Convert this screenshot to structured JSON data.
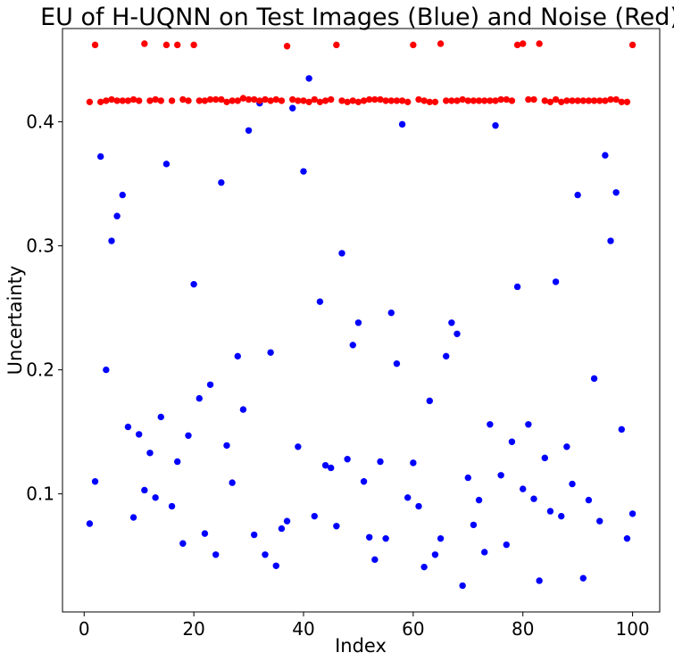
{
  "chart_data": {
    "type": "scatter",
    "title": "EU of H-UQNN on Test Images (Blue) and Noise (Red)",
    "xlabel": "Index",
    "ylabel": "Uncertainty",
    "xlim": [
      -3.95,
      104.95
    ],
    "ylim": [
      0.0048,
      0.4752
    ],
    "xticks": [
      0,
      20,
      40,
      60,
      80,
      100
    ],
    "xtick_labels": [
      "0",
      "20",
      "40",
      "60",
      "80",
      "100"
    ],
    "yticks": [
      0.1,
      0.2,
      0.3,
      0.4
    ],
    "ytick_labels": [
      "0.1",
      "0.2",
      "0.3",
      "0.4"
    ],
    "grid": false,
    "legend": "none",
    "series": [
      {
        "color": "#0000ff",
        "x": [
          1,
          2,
          3,
          4,
          5,
          6,
          7,
          8,
          9,
          10,
          11,
          12,
          13,
          14,
          15,
          16,
          17,
          18,
          19,
          20,
          21,
          22,
          23,
          24,
          25,
          26,
          27,
          28,
          29,
          30,
          31,
          32,
          33,
          34,
          35,
          36,
          37,
          38,
          39,
          40,
          41,
          42,
          43,
          44,
          45,
          46,
          47,
          48,
          49,
          50,
          51,
          52,
          53,
          54,
          55,
          56,
          57,
          58,
          59,
          60,
          61,
          62,
          63,
          64,
          65,
          66,
          67,
          68,
          69,
          70,
          71,
          72,
          73,
          74,
          75,
          76,
          77,
          78,
          79,
          80,
          81,
          82,
          83,
          84,
          85,
          86,
          87,
          88,
          89,
          90,
          91,
          92,
          93,
          94,
          95,
          96,
          97,
          98,
          99,
          100
        ],
        "y": [
          0.076,
          0.11,
          0.372,
          0.2,
          0.304,
          0.324,
          0.341,
          0.154,
          0.081,
          0.148,
          0.103,
          0.133,
          0.097,
          0.162,
          0.366,
          0.09,
          0.126,
          0.06,
          0.147,
          0.269,
          0.177,
          0.068,
          0.188,
          0.051,
          0.351,
          0.139,
          0.109,
          0.211,
          0.168,
          0.393,
          0.067,
          0.415,
          0.051,
          0.214,
          0.042,
          0.072,
          0.078,
          0.411,
          0.138,
          0.36,
          0.435,
          0.082,
          0.255,
          0.123,
          0.121,
          0.074,
          0.294,
          0.128,
          0.22,
          0.238,
          0.11,
          0.065,
          0.047,
          0.126,
          0.064,
          0.246,
          0.205,
          0.398,
          0.097,
          0.125,
          0.09,
          0.041,
          0.175,
          0.051,
          0.064,
          0.211,
          0.238,
          0.229,
          0.026,
          0.113,
          0.075,
          0.095,
          0.053,
          0.156,
          0.397,
          0.115,
          0.059,
          0.142,
          0.267,
          0.104,
          0.156,
          0.096,
          0.03,
          0.129,
          0.086,
          0.271,
          0.082,
          0.138,
          0.108,
          0.341,
          0.032,
          0.095,
          0.193,
          0.078,
          0.373,
          0.304,
          0.343,
          0.152,
          0.064,
          0.084
        ]
      },
      {
        "color": "#ff0000",
        "x": [
          1,
          2,
          3,
          4,
          5,
          6,
          7,
          8,
          9,
          10,
          11,
          12,
          13,
          14,
          15,
          16,
          17,
          18,
          19,
          20,
          21,
          22,
          23,
          24,
          25,
          26,
          27,
          28,
          29,
          30,
          31,
          32,
          33,
          34,
          35,
          36,
          37,
          38,
          39,
          40,
          41,
          42,
          43,
          44,
          45,
          46,
          47,
          48,
          49,
          50,
          51,
          52,
          53,
          54,
          55,
          56,
          57,
          58,
          59,
          60,
          61,
          62,
          63,
          64,
          65,
          66,
          67,
          68,
          69,
          70,
          71,
          72,
          73,
          74,
          75,
          76,
          77,
          78,
          79,
          80,
          81,
          82,
          83,
          84,
          85,
          86,
          87,
          88,
          89,
          90,
          91,
          92,
          93,
          94,
          95,
          96,
          97,
          98,
          99,
          100
        ],
        "y": [
          0.416,
          0.462,
          0.416,
          0.417,
          0.418,
          0.417,
          0.417,
          0.417,
          0.418,
          0.417,
          0.463,
          0.417,
          0.418,
          0.417,
          0.462,
          0.417,
          0.462,
          0.418,
          0.417,
          0.462,
          0.417,
          0.417,
          0.418,
          0.418,
          0.418,
          0.416,
          0.417,
          0.417,
          0.419,
          0.418,
          0.418,
          0.417,
          0.418,
          0.417,
          0.418,
          0.417,
          0.461,
          0.418,
          0.417,
          0.417,
          0.416,
          0.418,
          0.416,
          0.417,
          0.418,
          0.462,
          0.417,
          0.416,
          0.417,
          0.416,
          0.417,
          0.418,
          0.418,
          0.418,
          0.417,
          0.417,
          0.417,
          0.417,
          0.416,
          0.462,
          0.418,
          0.417,
          0.416,
          0.416,
          0.463,
          0.417,
          0.417,
          0.417,
          0.418,
          0.417,
          0.417,
          0.417,
          0.417,
          0.417,
          0.417,
          0.418,
          0.418,
          0.417,
          0.462,
          0.463,
          0.418,
          0.418,
          0.463,
          0.417,
          0.416,
          0.418,
          0.416,
          0.417,
          0.417,
          0.417,
          0.417,
          0.417,
          0.417,
          0.417,
          0.417,
          0.418,
          0.418,
          0.416,
          0.416,
          0.462
        ]
      }
    ]
  }
}
